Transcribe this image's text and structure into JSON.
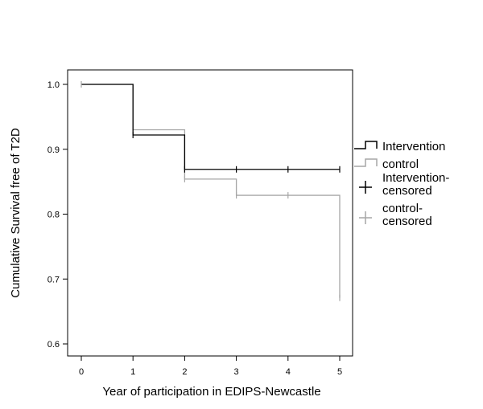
{
  "chart_data": {
    "type": "line",
    "subtype": "kaplan-meier step plot",
    "title": "",
    "xlabel": "Year of participation in EDIPS-Newcastle",
    "ylabel": "Cumulative Survival free of T2D",
    "xlim": [
      0,
      5
    ],
    "ylim": [
      0.6,
      1.0
    ],
    "x_ticks": [
      0,
      1,
      2,
      3,
      4,
      5
    ],
    "y_ticks": [
      0.6,
      0.7,
      0.8,
      0.9,
      1.0
    ],
    "y_tick_labels": [
      "0.6",
      "0.7",
      "0.8",
      "0.9",
      "1.0"
    ],
    "grid": false,
    "legend_position": "right",
    "series": [
      {
        "name": "Intervention",
        "color": "#000000",
        "steps": [
          [
            0,
            1.0
          ],
          [
            1,
            0.922
          ],
          [
            2,
            0.869
          ]
        ],
        "end_x": 5,
        "censored_name": "Intervention-censored",
        "censored": [
          [
            1,
            0.922
          ],
          [
            2,
            0.869
          ],
          [
            3,
            0.869
          ],
          [
            4,
            0.869
          ],
          [
            5,
            0.869
          ]
        ]
      },
      {
        "name": "control",
        "color": "#a6a6a6",
        "steps": [
          [
            0,
            1.0
          ],
          [
            1,
            0.93
          ],
          [
            2,
            0.854
          ],
          [
            3,
            0.829
          ],
          [
            5,
            0.671
          ]
        ],
        "end_x": 5,
        "censored_name": "control-censored",
        "censored": [
          [
            0,
            1.0
          ],
          [
            2,
            0.854
          ],
          [
            3,
            0.829
          ],
          [
            4,
            0.829
          ],
          [
            5,
            0.671
          ]
        ]
      }
    ],
    "legend": [
      {
        "label": "Intervention",
        "kind": "line",
        "color": "#000000"
      },
      {
        "label": "control",
        "kind": "line",
        "color": "#a6a6a6"
      },
      {
        "label": "Intervention-\ncensored",
        "kind": "censor",
        "color": "#000000"
      },
      {
        "label": "control-\ncensored",
        "kind": "censor",
        "color": "#a6a6a6"
      }
    ]
  }
}
